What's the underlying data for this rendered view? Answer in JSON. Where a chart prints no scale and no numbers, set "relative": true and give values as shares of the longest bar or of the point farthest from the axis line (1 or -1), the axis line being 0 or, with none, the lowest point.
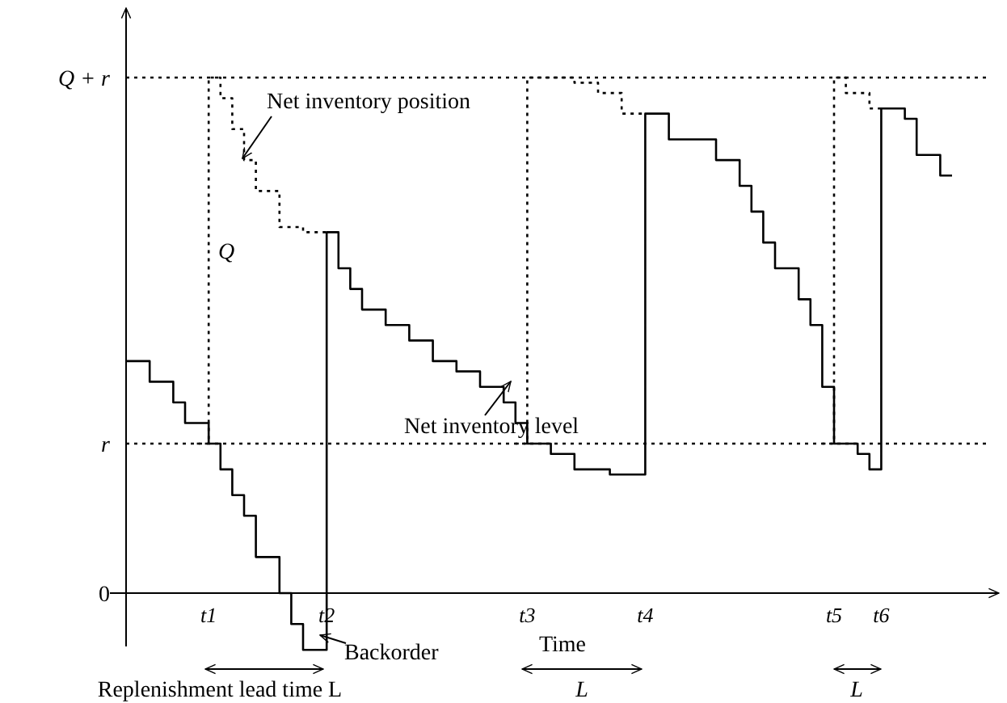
{
  "chart_data": {
    "type": "step",
    "relative": true,
    "xlabel": "Time",
    "categories": [
      null,
      null,
      null,
      null,
      null,
      null,
      null,
      "t1",
      null,
      null,
      null,
      null,
      null,
      null,
      null,
      null,
      null,
      "t2",
      null,
      null,
      null,
      null,
      null,
      null,
      null,
      null,
      null,
      null,
      null,
      null,
      null,
      null,
      null,
      null,
      "t3",
      null,
      null,
      null,
      null,
      null,
      null,
      null,
      null,
      null,
      "t4",
      null,
      null,
      null,
      null,
      null,
      null,
      null,
      null,
      null,
      null,
      null,
      null,
      null,
      null,
      null,
      "t5",
      null,
      null,
      null,
      "t6",
      null,
      null,
      null,
      null,
      null,
      null,
      null,
      null,
      null
    ],
    "series": [
      {
        "color": "#000000",
        "line_style": "solid",
        "values": [
          0.45,
          0.45,
          0.41,
          0.41,
          0.37,
          0.33,
          0.33,
          0.29,
          0.24,
          0.19,
          0.15,
          0.07,
          0.07,
          0,
          -0.06,
          -0.11,
          -0.11,
          0.7,
          0.63,
          0.59,
          0.55,
          0.55,
          0.52,
          0.52,
          0.49,
          0.49,
          0.45,
          0.45,
          0.43,
          0.43,
          0.4,
          0.4,
          0.37,
          0.33,
          0.29,
          0.29,
          0.27,
          0.27,
          0.24,
          0.24,
          0.24,
          0.23,
          0.23,
          0.23,
          0.93,
          0.93,
          0.88,
          0.88,
          0.88,
          0.88,
          0.84,
          0.84,
          0.79,
          0.74,
          0.68,
          0.63,
          0.63,
          0.57,
          0.52,
          0.4,
          0.29,
          0.29,
          0.27,
          0.24,
          0.94,
          0.94,
          0.92,
          0.85,
          0.85,
          0.81,
          0.81,
          null,
          null,
          null
        ]
      },
      {
        "color": "#000000",
        "line_style": "dotted",
        "values": [
          null,
          null,
          null,
          null,
          null,
          null,
          0.29,
          1.0,
          0.96,
          0.9,
          0.84,
          0.78,
          0.78,
          0.71,
          0.71,
          0.7,
          0.7,
          0.7,
          null,
          null,
          null,
          null,
          null,
          null,
          null,
          null,
          null,
          null,
          null,
          null,
          null,
          null,
          null,
          0.29,
          1.0,
          1.0,
          1.0,
          1.0,
          0.99,
          0.99,
          0.97,
          0.97,
          0.93,
          0.93,
          0.93,
          null,
          null,
          null,
          null,
          null,
          null,
          null,
          null,
          null,
          null,
          null,
          null,
          null,
          null,
          0.29,
          1.0,
          0.97,
          0.97,
          0.94,
          0.94,
          null,
          null,
          null,
          null,
          null,
          null,
          null,
          null,
          null
        ]
      }
    ],
    "ref_lines": [
      {
        "axis": "y",
        "value": 0.29,
        "label": "r",
        "line_style": "dotted"
      },
      {
        "axis": "y",
        "value": 1.0,
        "label": "Q + r",
        "line_style": "dotted"
      }
    ],
    "annotations": [
      "0",
      "Net inventory position",
      "Q",
      "Net inventory level",
      "Backorder",
      "Replenishment lead time L",
      "L",
      "L"
    ]
  }
}
